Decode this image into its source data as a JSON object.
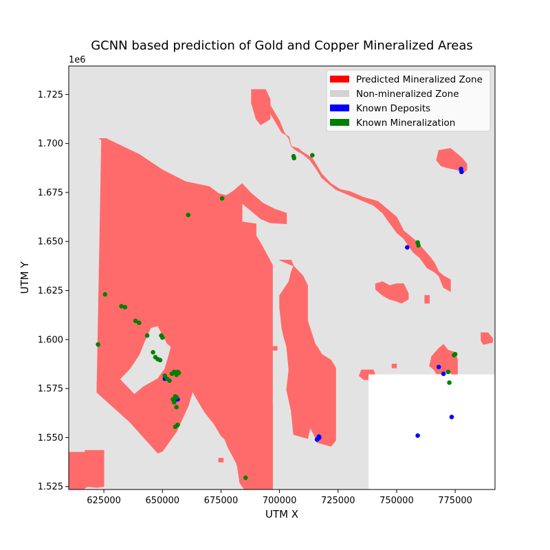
{
  "chart_data": {
    "type": "scatter",
    "title": "GCNN based prediction of Gold and Copper Mineralized Areas",
    "xlabel": "UTM X",
    "ylabel": "UTM Y",
    "y_offset_text": "1e6",
    "xlim": [
      610000,
      792000
    ],
    "ylim": [
      1.5235,
      1.7395
    ],
    "x_ticks": [
      625000,
      650000,
      675000,
      700000,
      725000,
      750000,
      775000
    ],
    "x_tick_labels": [
      "625000",
      "650000",
      "675000",
      "700000",
      "725000",
      "750000",
      "775000"
    ],
    "y_ticks": [
      1.525,
      1.55,
      1.575,
      1.6,
      1.625,
      1.65,
      1.675,
      1.7,
      1.725
    ],
    "y_tick_labels": [
      "1.525",
      "1.550",
      "1.575",
      "1.600",
      "1.625",
      "1.650",
      "1.675",
      "1.700",
      "1.725"
    ],
    "grid": false,
    "legend_position": "top-right",
    "colors": {
      "background_zone": "#e3e3e3",
      "predicted_zone": "#ff6b6b",
      "predicted_legend": "#ff0000",
      "nonmineral_legend": "#d3d3d3",
      "deposit": "#0000ff",
      "mineralization": "#008000",
      "nodata": "#ffffff"
    },
    "legend": [
      {
        "label": "Predicted Mineralized Zone",
        "color": "#ff0000"
      },
      {
        "label": "Non-mineralized Zone",
        "color": "#d3d3d3"
      },
      {
        "label": "Known Deposits",
        "color": "#0000ff"
      },
      {
        "label": "Known Mineralization",
        "color": "#008000"
      }
    ],
    "nodata_region": {
      "x": [
        738000,
        792000
      ],
      "y": [
        1.5235,
        1.5822
      ]
    },
    "predicted_zones": [
      {
        "x": [
          610000,
          617000,
          617000,
          625000,
          625000,
          622000,
          618000,
          616000,
          610000
        ],
        "y": [
          1.5425,
          1.5425,
          1.5435,
          1.5435,
          1.525,
          1.5245,
          1.525,
          1.5235,
          1.5235
        ]
      },
      {
        "x": [
          624000,
          626000,
          630000,
          640000,
          650000,
          660000,
          670000,
          674000,
          680000,
          684000,
          684000,
          690000,
          690000,
          692000,
          697000,
          697000,
          685000,
          683000,
          682000,
          680000,
          675000,
          672000,
          668000,
          664000,
          661000,
          659000,
          656000,
          652000,
          648000,
          645000,
          642000,
          640000,
          636000,
          632000,
          627000,
          624000,
          623000,
          622000
        ],
        "y": [
          1.7025,
          1.7025,
          1.6995,
          1.6945,
          1.6865,
          1.6805,
          1.678,
          1.6745,
          1.6725,
          1.6695,
          1.66,
          1.659,
          1.653,
          1.649,
          1.638,
          1.5235,
          1.5235,
          1.527,
          1.535,
          1.545,
          1.551,
          1.557,
          1.563,
          1.571,
          1.578,
          1.585,
          1.594,
          1.598,
          1.607,
          1.606,
          1.598,
          1.592,
          1.585,
          1.58,
          1.583,
          1.5835,
          1.578,
          1.573
        ]
      },
      {
        "x": [
          622000,
          636000,
          648000,
          650000,
          656000,
          661000,
          664000,
          667000,
          668000,
          666000,
          660000,
          655000,
          653000,
          651000,
          648000,
          642000,
          638000,
          634000,
          630000,
          627000,
          624000,
          622000
        ],
        "y": [
          1.573,
          1.558,
          1.542,
          1.543,
          1.553,
          1.566,
          1.578,
          1.588,
          1.598,
          1.605,
          1.607,
          1.603,
          1.593,
          1.585,
          1.58,
          1.576,
          1.572,
          1.577,
          1.582,
          1.583,
          1.5835,
          1.578
        ]
      },
      {
        "x": [
          623000,
          626000,
          640000,
          655000,
          662000,
          668000,
          671000,
          671000,
          666000,
          660000,
          656000,
          652000,
          648000,
          645000,
          642000,
          640000,
          636000,
          632000
        ],
        "y": [
          1.7025,
          1.7025,
          1.6945,
          1.6815,
          1.6785,
          1.676,
          1.673,
          1.6545,
          1.6555,
          1.6625,
          1.6665,
          1.668,
          1.6755,
          1.681,
          1.6845,
          1.6885,
          1.6925,
          1.6965
        ]
      },
      {
        "x": [
          671000,
          676000,
          680000,
          684000,
          688000,
          693000,
          698000,
          703000,
          703000,
          696000,
          692000,
          688000,
          684000,
          680000,
          676000,
          671000
        ],
        "y": [
          1.673,
          1.6725,
          1.6755,
          1.6795,
          1.6745,
          1.6695,
          1.6665,
          1.6645,
          1.659,
          1.6595,
          1.6615,
          1.6655,
          1.6695,
          1.6705,
          1.6675,
          1.6545
        ]
      },
      {
        "x": [
          676000,
          684000,
          686000,
          690000,
          690000,
          686000,
          687000,
          690000,
          692000,
          697000,
          697000,
          690000,
          686000,
          682000,
          678000,
          676000,
          674000,
          670000,
          669000,
          671000
        ],
        "y": [
          1.6105,
          1.624,
          1.624,
          1.6215,
          1.5985,
          1.5925,
          1.5825,
          1.575,
          1.57,
          1.566,
          1.5235,
          1.5235,
          1.5265,
          1.536,
          1.545,
          1.551,
          1.557,
          1.562,
          1.567,
          1.5735
        ]
      },
      {
        "x": [
          666000,
          668000,
          672000,
          674000,
          676000,
          681000,
          687000,
          690000,
          690000,
          687000,
          685000,
          682000,
          678000,
          675000,
          672000,
          670000,
          668000
        ],
        "y": [
          1.6085,
          1.6145,
          1.618,
          1.627,
          1.6285,
          1.6285,
          1.6235,
          1.6205,
          1.5965,
          1.5925,
          1.5845,
          1.5785,
          1.5785,
          1.5875,
          1.5985,
          1.6025,
          1.6055
        ]
      },
      {
        "x": [
          690000,
          692000,
          692000,
          690000
        ],
        "y": [
          1.6195,
          1.6195,
          1.6125,
          1.6125
        ]
      },
      {
        "x": [
          700000,
          705000,
          706000,
          710000,
          712000,
          712000,
          715000,
          716000,
          718000,
          718000,
          716000,
          715000,
          713000,
          712000,
          706000,
          705000,
          703000,
          704000,
          703000,
          702000,
          701000,
          700000,
          700000,
          704000,
          705000,
          706000
        ],
        "y": [
          1.6405,
          1.6405,
          1.6375,
          1.6325,
          1.6275,
          1.6095,
          1.5985,
          1.5955,
          1.5925,
          1.5755,
          1.5695,
          1.5575,
          1.5545,
          1.5495,
          1.5515,
          1.5635,
          1.5745,
          1.5845,
          1.5965,
          1.6005,
          1.6055,
          1.6165,
          1.6225,
          1.6295,
          1.6345,
          1.6375
        ]
      },
      {
        "x": [
          711000,
          713000,
          716000,
          718000,
          722000,
          724000,
          724000,
          722000,
          719000,
          716000,
          715000,
          713000,
          712000,
          711000,
          709000,
          706000,
          704000,
          705000,
          706000,
          707000,
          707000,
          709000,
          710000,
          711000
        ],
        "y": [
          1.6095,
          1.6005,
          1.5965,
          1.5925,
          1.5895,
          1.5855,
          1.5485,
          1.5455,
          1.5465,
          1.5475,
          1.5505,
          1.5555,
          1.5625,
          1.5705,
          1.5745,
          1.5805,
          1.5865,
          1.5935,
          1.5955,
          1.5985,
          1.6035,
          1.6065,
          1.6085,
          1.6095
        ]
      },
      {
        "x": [
          688000,
          694000,
          696000,
          696000,
          692000,
          690000,
          688000
        ],
        "y": [
          1.7275,
          1.7275,
          1.7225,
          1.7125,
          1.7095,
          1.7125,
          1.7205
        ]
      },
      {
        "x": [
          692000,
          696000,
          698000,
          701000,
          704000,
          705000,
          708000,
          710000,
          714000,
          716000,
          718000,
          722000,
          726000,
          730000,
          736000,
          742000,
          746000,
          750000,
          753000,
          756000,
          758000,
          761000,
          764000,
          766000,
          768000,
          770000,
          773000,
          773000,
          770000,
          768000,
          766000,
          763000,
          760000,
          757000,
          753000,
          750000,
          747000,
          744000,
          740000,
          736000,
          732000,
          728000,
          724000,
          720000,
          718000,
          716000,
          713000,
          710000,
          707000,
          705000,
          704000,
          702000,
          700000,
          698000,
          696000
        ],
        "y": [
          1.7225,
          1.7155,
          1.7115,
          1.7055,
          1.7035,
          1.6985,
          1.6975,
          1.6955,
          1.6925,
          1.6885,
          1.6845,
          1.6795,
          1.6765,
          1.6755,
          1.6725,
          1.6705,
          1.6665,
          1.6625,
          1.6555,
          1.6525,
          1.6505,
          1.6465,
          1.6425,
          1.6395,
          1.6345,
          1.6325,
          1.6305,
          1.6245,
          1.6265,
          1.6325,
          1.6345,
          1.6365,
          1.6415,
          1.6445,
          1.6515,
          1.6545,
          1.6595,
          1.6645,
          1.6685,
          1.6705,
          1.6725,
          1.6745,
          1.6765,
          1.6805,
          1.6825,
          1.6865,
          1.6915,
          1.6945,
          1.6965,
          1.6985,
          1.7025,
          1.7055,
          1.7115,
          1.7155,
          1.7195
        ]
      },
      {
        "x": [
          741000,
          744000,
          747000,
          750000,
          753000,
          755000,
          755000,
          752000,
          750000,
          747000,
          744000,
          741000
        ],
        "y": [
          1.6285,
          1.6295,
          1.6275,
          1.6285,
          1.6285,
          1.6235,
          1.6205,
          1.6185,
          1.6195,
          1.6205,
          1.6225,
          1.6255
        ]
      },
      {
        "x": [
          762000,
          764000,
          764000,
          762000
        ],
        "y": [
          1.6225,
          1.6225,
          1.6185,
          1.6185
        ]
      },
      {
        "x": [
          760000,
          762000,
          762000,
          760000
        ],
        "y": [
          1.6455,
          1.6455,
          1.6435,
          1.6435
        ]
      },
      {
        "x": [
          768000,
          773000,
          776000,
          778000,
          780000,
          780000,
          778000,
          776000,
          772000,
          769000,
          767000
        ],
        "y": [
          1.6965,
          1.6975,
          1.6945,
          1.6925,
          1.6895,
          1.6865,
          1.6845,
          1.6865,
          1.6875,
          1.6885,
          1.6915
        ]
      },
      {
        "x": [
          786000,
          789000,
          791000,
          791000,
          787000,
          786000
        ],
        "y": [
          1.6035,
          1.6035,
          1.6005,
          1.5985,
          1.5975,
          1.5995
        ]
      },
      {
        "x": [
          765000,
          768000,
          770000,
          772000,
          775000,
          776000,
          776000,
          774000,
          772000,
          770000,
          767000,
          766000,
          764000
        ],
        "y": [
          1.5915,
          1.5955,
          1.5975,
          1.5945,
          1.5935,
          1.5895,
          1.5815,
          1.5815,
          1.5845,
          1.5825,
          1.5825,
          1.5845,
          1.5865
        ]
      },
      {
        "x": [
          735000,
          740000,
          741000,
          738000,
          736000,
          734000
        ],
        "y": [
          1.5845,
          1.5845,
          1.5815,
          1.5795,
          1.5795,
          1.5815
        ]
      },
      {
        "x": [
          748000,
          750000,
          750000,
          748000
        ],
        "y": [
          1.5875,
          1.5875,
          1.5855,
          1.5855
        ]
      },
      {
        "x": [
          697000,
          699000,
          699000,
          697000
        ],
        "y": [
          1.5965,
          1.5965,
          1.5945,
          1.5945
        ]
      },
      {
        "x": [
          674000,
          676000,
          676000,
          674000
        ],
        "y": [
          1.5395,
          1.5395,
          1.5375,
          1.5375
        ]
      }
    ],
    "series": [
      {
        "name": "Known Deposits",
        "color": "#0000ff",
        "x": [
          655000,
          656500,
          651000,
          716000,
          716500,
          717000,
          716800,
          754500,
          759000,
          768000,
          770000,
          773500,
          777500,
          777700
        ],
        "y": [
          1.5685,
          1.5695,
          1.58,
          1.549,
          1.5495,
          1.55,
          1.5505,
          1.647,
          1.551,
          1.586,
          1.5825,
          1.5605,
          1.687,
          1.6855
        ]
      },
      {
        "name": "Known Mineralization",
        "color": "#008000",
        "x": [
          622500,
          625500,
          632500,
          634000,
          638500,
          640000,
          643500,
          646000,
          647000,
          648000,
          649000,
          649500,
          650000,
          651000,
          652000,
          653000,
          654000,
          655000,
          656000,
          656500,
          657000,
          655500,
          656000,
          654500,
          655000,
          656000,
          656500,
          655500,
          661000,
          675500,
          685500,
          706000,
          706200,
          714000,
          759000,
          759300,
          772000,
          772500,
          774500,
          775000
        ],
        "y": [
          1.5975,
          1.623,
          1.617,
          1.6165,
          1.6095,
          1.6085,
          1.602,
          1.5935,
          1.591,
          1.59,
          1.5895,
          1.602,
          1.601,
          1.5815,
          1.58,
          1.579,
          1.5825,
          1.5835,
          1.582,
          1.5835,
          1.583,
          1.571,
          1.5705,
          1.5695,
          1.568,
          1.5655,
          1.5565,
          1.5555,
          1.6635,
          1.672,
          1.5295,
          1.6935,
          1.6925,
          1.694,
          1.6495,
          1.648,
          1.5835,
          1.578,
          1.592,
          1.5925
        ]
      }
    ]
  }
}
